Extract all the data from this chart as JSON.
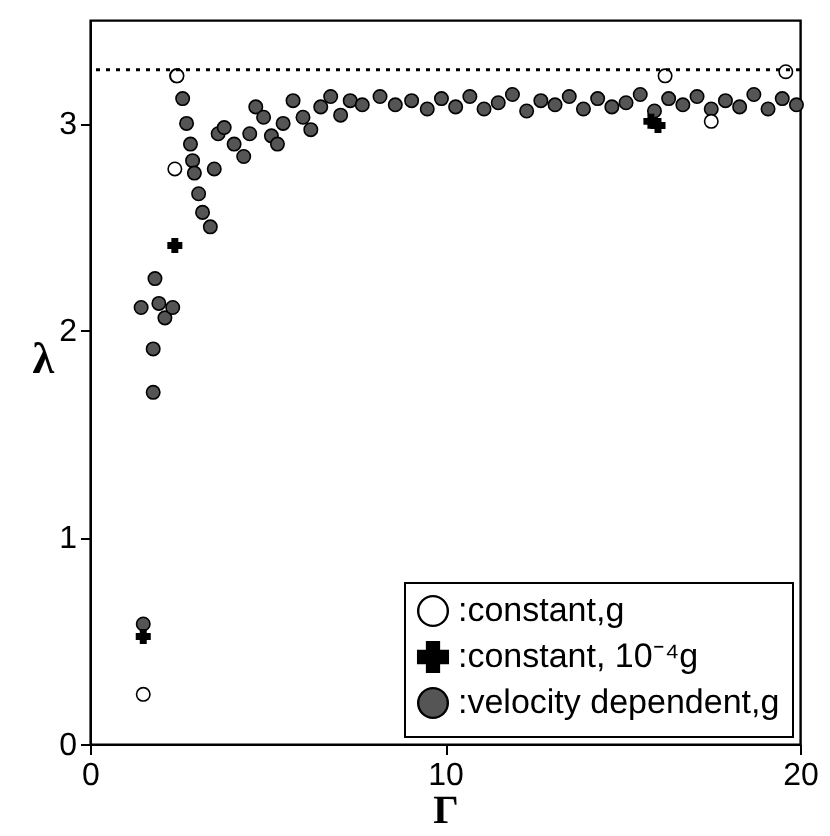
{
  "chart_data": {
    "type": "scatter",
    "xlabel": "Γ",
    "ylabel": "λ",
    "xlim": [
      0,
      20
    ],
    "ylim": [
      0,
      3.5
    ],
    "xticks": [
      0,
      10,
      20
    ],
    "yticks": [
      0,
      1,
      2,
      3
    ],
    "grid": false,
    "legend": "bottom right",
    "ref_lines": [
      {
        "axis": "y",
        "value": 3.26,
        "color": "#000000",
        "line_style": "dotted"
      }
    ],
    "series": [
      {
        "name": ":constant,g",
        "color": "#ffffff",
        "marker": "circle",
        "x": [
          1.5,
          2.39,
          2.45,
          16.2,
          17.5,
          19.6
        ],
        "values": [
          0.24,
          2.78,
          3.23,
          3.23,
          3.01,
          3.25
        ]
      },
      {
        "name": ":constant, 10⁻⁴g",
        "color": "#000000",
        "marker": "cross",
        "x": [
          1.5,
          2.39,
          15.8,
          16.0
        ],
        "values": [
          0.52,
          2.41,
          3.01,
          2.99
        ]
      },
      {
        "name": ":velocity dependent,g",
        "color": "#555555",
        "marker": "circle",
        "x": [
          1.5,
          1.44,
          1.78,
          1.78,
          1.83,
          1.94,
          2.11,
          2.33,
          2.44,
          2.61,
          2.72,
          2.83,
          2.89,
          2.94,
          3.06,
          3.17,
          3.39,
          3.5,
          3.61,
          3.78,
          4.06,
          4.33,
          4.5,
          4.67,
          4.89,
          5.11,
          5.28,
          5.44,
          5.72,
          6.0,
          6.22,
          6.5,
          6.78,
          7.06,
          7.33,
          7.67,
          8.17,
          8.6,
          9.06,
          9.5,
          9.9,
          10.3,
          10.7,
          11.1,
          11.5,
          11.9,
          12.3,
          12.7,
          13.1,
          13.5,
          13.9,
          14.3,
          14.7,
          15.1,
          15.5,
          15.9,
          16.3,
          16.7,
          17.1,
          17.5,
          17.9,
          18.3,
          18.7,
          19.1,
          19.5,
          19.9
        ],
        "values": [
          0.58,
          2.11,
          1.7,
          1.91,
          2.25,
          2.13,
          2.06,
          2.11,
          3.23,
          3.12,
          3.0,
          2.9,
          2.82,
          2.76,
          2.66,
          2.57,
          2.5,
          2.78,
          2.95,
          2.98,
          2.9,
          2.84,
          2.95,
          3.08,
          3.03,
          2.94,
          2.9,
          3.0,
          3.11,
          3.03,
          2.97,
          3.08,
          3.13,
          3.04,
          3.11,
          3.09,
          3.13,
          3.09,
          3.11,
          3.07,
          3.12,
          3.08,
          3.13,
          3.07,
          3.1,
          3.14,
          3.06,
          3.11,
          3.09,
          3.13,
          3.07,
          3.12,
          3.08,
          3.1,
          3.14,
          3.06,
          3.12,
          3.09,
          3.13,
          3.07,
          3.11,
          3.08,
          3.14,
          3.07,
          3.12,
          3.09
        ]
      }
    ]
  }
}
